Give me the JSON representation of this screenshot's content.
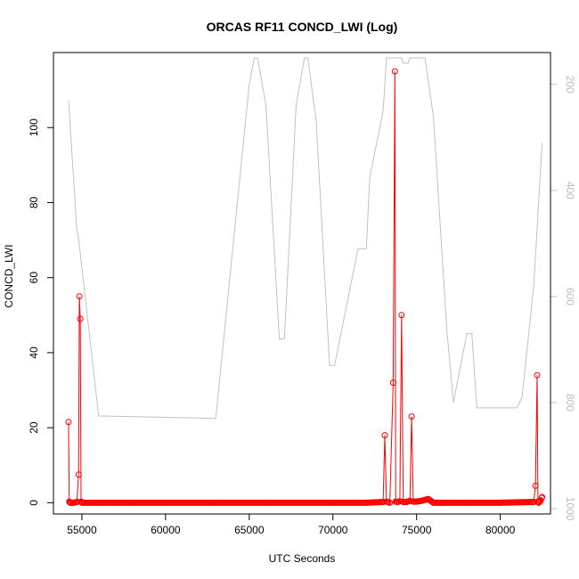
{
  "chart_data": {
    "type": "line",
    "title": "ORCAS RF11 CONCD_LWI (Log)",
    "xlabel": "UTC Seconds",
    "ylabel": "CONCD_LWI",
    "xlim": [
      53300,
      83000
    ],
    "ylim": [
      -3,
      120
    ],
    "x_ticks": [
      55000,
      60000,
      65000,
      70000,
      75000,
      80000
    ],
    "y_ticks": [
      0,
      20,
      40,
      60,
      80,
      100
    ],
    "y2lim": [
      1010,
      140
    ],
    "y2_ticks": [
      200,
      400,
      600,
      800,
      1000
    ],
    "grid": false,
    "colors": {
      "primary": "#ff0000",
      "secondary": "#c0c0c0"
    },
    "series": [
      {
        "role": "primary",
        "style": "line+points",
        "x": [
          54200,
          54250,
          54300,
          54500,
          54700,
          54800,
          54850,
          54900,
          54950,
          55000,
          55100,
          56000,
          58000,
          60000,
          63000,
          66000,
          70000,
          72000,
          73000,
          73100,
          73200,
          73400,
          73600,
          73700,
          73750,
          73850,
          74000,
          74100,
          74200,
          74400,
          74600,
          74700,
          74800,
          75000,
          75300,
          75700,
          76000,
          78000,
          80000,
          82000,
          82100,
          82200,
          82250,
          82300,
          82400,
          82500
        ],
        "y": [
          21.5,
          0.3,
          0,
          0,
          0.2,
          7.5,
          55,
          49,
          0.3,
          0,
          0,
          0,
          0,
          0,
          0,
          0,
          0,
          0,
          0.2,
          18,
          0.3,
          0,
          32,
          115,
          0.3,
          0.2,
          0.4,
          50,
          0.2,
          0.2,
          0.5,
          23,
          0.3,
          0.3,
          0.5,
          1,
          0,
          0,
          0,
          0.2,
          4.5,
          34,
          0.3,
          0,
          0.5,
          1.5
        ]
      },
      {
        "role": "secondary",
        "style": "line",
        "x": [
          54200,
          54700,
          54800,
          56000,
          63000,
          65000,
          65300,
          65500,
          66000,
          66800,
          67100,
          67800,
          68300,
          68500,
          69000,
          69800,
          70100,
          71500,
          72000,
          72200,
          73000,
          73200,
          73800,
          74100,
          74200,
          74500,
          74600,
          75300,
          75500,
          76000,
          76800,
          77200,
          78000,
          78300,
          78600,
          79000,
          80000,
          81000,
          81300,
          82000,
          82500
        ],
        "y": [
          230,
          475,
          490,
          825,
          830,
          200,
          150,
          150,
          240,
          680,
          680,
          240,
          150,
          150,
          270,
          730,
          730,
          510,
          510,
          375,
          250,
          150,
          150,
          150,
          160,
          160,
          150,
          150,
          150,
          260,
          660,
          800,
          670,
          670,
          810,
          810,
          810,
          810,
          790,
          580,
          310
        ]
      }
    ]
  }
}
